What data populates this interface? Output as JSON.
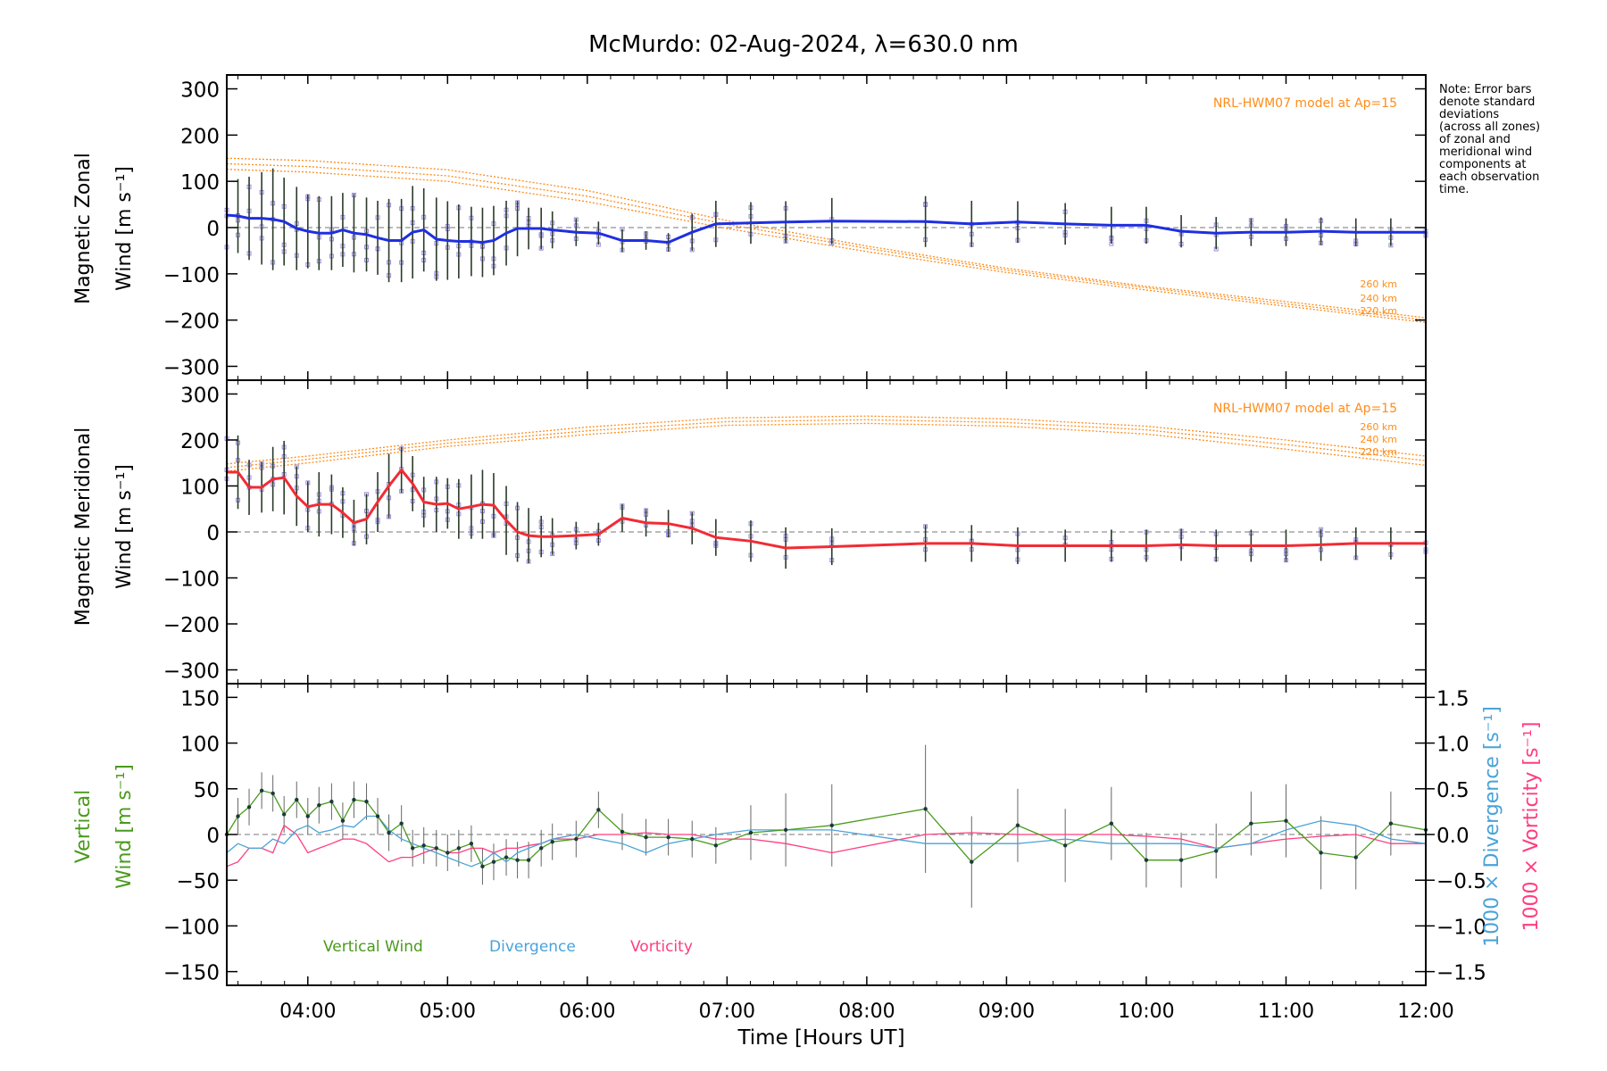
{
  "title": "McMurdo: 02-Aug-2024, λ=630.0 nm",
  "note": [
    "Note: Error bars",
    "denote standard",
    "deviations",
    "(across all zones)",
    "of zonal and",
    "meridional wind",
    "components at",
    "each observation",
    "time."
  ],
  "xlabel": "Time [Hours UT]",
  "x_ticks": [
    "04:00",
    "05:00",
    "06:00",
    "07:00",
    "08:00",
    "09:00",
    "10:00",
    "11:00",
    "12:00"
  ],
  "colors": {
    "zonal": "#1f2fe0",
    "meridional": "#f22b34",
    "model": "#ff8c1a",
    "vertical": "#4a9a1c",
    "divergence": "#4aa3d8",
    "vorticity": "#ff3d7f",
    "samples": "#9b8fe0"
  },
  "chart_data": [
    {
      "type": "line",
      "panel": "zonal",
      "ylabel_line1": "Magnetic Zonal",
      "ylabel_line2": "Wind [m s⁻¹]",
      "ylim": [
        -330,
        330
      ],
      "y_ticks": [
        "300",
        "200",
        "100",
        "0",
        "−100",
        "−200",
        "−300"
      ],
      "model_label": "NRL-HWM07 model at Ap=15",
      "altitude_labels": [
        "260 km",
        "240 km",
        "220 km"
      ],
      "grid": false,
      "x": [
        3.42,
        3.5,
        3.58,
        3.67,
        3.75,
        3.83,
        3.92,
        4.0,
        4.08,
        4.17,
        4.25,
        4.33,
        4.42,
        4.5,
        4.58,
        4.67,
        4.75,
        4.83,
        4.92,
        5.0,
        5.08,
        5.17,
        5.25,
        5.33,
        5.42,
        5.5,
        5.58,
        5.67,
        5.75,
        5.92,
        6.08,
        6.25,
        6.42,
        6.58,
        6.75,
        6.92,
        7.17,
        7.42,
        7.75,
        8.42,
        8.75,
        9.08,
        9.42,
        9.75,
        10.0,
        10.25,
        10.5,
        10.75,
        11.0,
        11.25,
        11.5,
        11.75,
        12.0
      ],
      "series": [
        {
          "values": [
            27,
            25,
            20,
            20,
            18,
            13,
            -2,
            -8,
            -12,
            -12,
            -5,
            -12,
            -15,
            -22,
            -28,
            -28,
            -10,
            -5,
            -25,
            -28,
            -30,
            -30,
            -32,
            -28,
            -12,
            -2,
            -2,
            -2,
            -5,
            -10,
            -12,
            -28,
            -28,
            -32,
            -10,
            8,
            10,
            12,
            14,
            13,
            8,
            12,
            8,
            5,
            5,
            -8,
            -12,
            -10,
            -10,
            -8,
            -10,
            -10,
            -10
          ]
        }
      ],
      "model_series": [
        {
          "name": "260 km",
          "x": [
            3.42,
            4.0,
            5.0,
            6.0,
            7.0,
            8.0,
            9.0,
            10.0,
            11.0,
            12.0
          ],
          "values": [
            150,
            145,
            125,
            80,
            15,
            -40,
            -88,
            -127,
            -160,
            -195
          ]
        },
        {
          "name": "240 km",
          "x": [
            3.42,
            4.0,
            5.0,
            6.0,
            7.0,
            8.0,
            9.0,
            10.0,
            11.0,
            12.0
          ],
          "values": [
            138,
            132,
            112,
            68,
            7,
            -45,
            -92,
            -130,
            -165,
            -200
          ]
        },
        {
          "name": "220 km",
          "x": [
            3.42,
            4.0,
            5.0,
            6.0,
            7.0,
            8.0,
            9.0,
            10.0,
            11.0,
            12.0
          ],
          "values": [
            126,
            120,
            100,
            56,
            -2,
            -52,
            -97,
            -135,
            -170,
            -205
          ]
        }
      ],
      "error_bar_halfwidth": [
        90,
        80,
        90,
        100,
        110,
        95,
        90,
        80,
        80,
        80,
        80,
        85,
        80,
        80,
        90,
        90,
        100,
        90,
        90,
        85,
        80,
        75,
        75,
        75,
        70,
        60,
        45,
        45,
        40,
        30,
        25,
        25,
        20,
        20,
        40,
        50,
        45,
        45,
        50,
        55,
        50,
        45,
        45,
        40,
        40,
        35,
        35,
        30,
        30,
        30,
        30,
        30,
        30
      ]
    },
    {
      "type": "line",
      "panel": "meridional",
      "ylabel_line1": "Magnetic Meridional",
      "ylabel_line2": "Wind [m s⁻¹]",
      "ylim": [
        -330,
        330
      ],
      "y_ticks": [
        "300",
        "200",
        "100",
        "0",
        "−100",
        "−200",
        "−300"
      ],
      "model_label": "NRL-HWM07 model at Ap=15",
      "altitude_labels": [
        "260 km",
        "240 km",
        "220 km"
      ],
      "grid": false,
      "x": [
        3.42,
        3.5,
        3.58,
        3.67,
        3.75,
        3.83,
        3.92,
        4.0,
        4.08,
        4.17,
        4.25,
        4.33,
        4.42,
        4.5,
        4.58,
        4.67,
        4.75,
        4.83,
        4.92,
        5.0,
        5.08,
        5.17,
        5.25,
        5.33,
        5.42,
        5.5,
        5.58,
        5.67,
        5.75,
        5.92,
        6.08,
        6.25,
        6.42,
        6.58,
        6.75,
        6.92,
        7.17,
        7.42,
        7.75,
        8.42,
        8.75,
        9.08,
        9.42,
        9.75,
        10.0,
        10.25,
        10.5,
        10.75,
        11.0,
        11.25,
        11.5,
        11.75,
        12.0
      ],
      "series": [
        {
          "values": [
            130,
            130,
            97,
            97,
            115,
            118,
            78,
            55,
            60,
            60,
            42,
            20,
            28,
            65,
            100,
            135,
            105,
            65,
            60,
            62,
            50,
            55,
            60,
            58,
            25,
            0,
            -8,
            -10,
            -10,
            -8,
            -5,
            30,
            20,
            18,
            8,
            -12,
            -20,
            -35,
            -32,
            -25,
            -25,
            -30,
            -30,
            -30,
            -30,
            -28,
            -30,
            -30,
            -30,
            -28,
            -25,
            -25,
            -25
          ]
        }
      ],
      "model_series": [
        {
          "name": "260 km",
          "x": [
            3.42,
            4.0,
            5.0,
            6.0,
            7.0,
            8.0,
            9.0,
            10.0,
            11.0,
            12.0
          ],
          "values": [
            148,
            165,
            200,
            228,
            248,
            252,
            246,
            230,
            200,
            165
          ]
        },
        {
          "name": "240 km",
          "x": [
            3.42,
            4.0,
            5.0,
            6.0,
            7.0,
            8.0,
            9.0,
            10.0,
            11.0,
            12.0
          ],
          "values": [
            140,
            158,
            193,
            220,
            240,
            244,
            238,
            222,
            190,
            155
          ]
        },
        {
          "name": "220 km",
          "x": [
            3.42,
            4.0,
            5.0,
            6.0,
            7.0,
            8.0,
            9.0,
            10.0,
            11.0,
            12.0
          ],
          "values": [
            132,
            150,
            186,
            212,
            232,
            236,
            230,
            213,
            180,
            145
          ]
        }
      ],
      "error_bar_halfwidth": [
        90,
        80,
        60,
        55,
        70,
        80,
        65,
        55,
        70,
        65,
        55,
        50,
        55,
        65,
        70,
        50,
        60,
        55,
        60,
        55,
        65,
        70,
        75,
        70,
        75,
        65,
        60,
        45,
        40,
        30,
        25,
        30,
        30,
        30,
        35,
        40,
        45,
        45,
        40,
        40,
        40,
        40,
        35,
        35,
        35,
        35,
        35,
        35,
        35,
        35,
        35,
        35,
        35
      ]
    },
    {
      "type": "line",
      "panel": "vertical",
      "ylabel_line1": "Vertical",
      "ylabel_line2": "Wind [m s⁻¹]",
      "ylim": [
        -165,
        165
      ],
      "y_ticks": [
        "150",
        "100",
        "50",
        "0",
        "−50",
        "−100",
        "−150"
      ],
      "right_ylabel_1": "1000 × Divergence [s⁻¹]",
      "right_ylabel_2": "1000 × Vorticity [s⁻¹]",
      "right_ylim": [
        -1.65,
        1.65
      ],
      "right_y_ticks": [
        "1.5",
        "1.0",
        "0.5",
        "0.0",
        "−0.5",
        "−1.0",
        "−1.5"
      ],
      "legend": [
        "Vertical Wind",
        "Divergence",
        "Vorticity"
      ],
      "grid": false,
      "x": [
        3.42,
        3.5,
        3.58,
        3.67,
        3.75,
        3.83,
        3.92,
        4.0,
        4.08,
        4.17,
        4.25,
        4.33,
        4.42,
        4.5,
        4.58,
        4.67,
        4.75,
        4.83,
        4.92,
        5.0,
        5.08,
        5.17,
        5.25,
        5.33,
        5.42,
        5.5,
        5.58,
        5.67,
        5.75,
        5.92,
        6.08,
        6.25,
        6.42,
        6.58,
        6.75,
        6.92,
        7.17,
        7.42,
        7.75,
        8.42,
        8.75,
        9.08,
        9.42,
        9.75,
        10.0,
        10.25,
        10.5,
        10.75,
        11.0,
        11.25,
        11.5,
        11.75,
        12.0
      ],
      "series": [
        {
          "name": "Vertical Wind",
          "axis": "left",
          "values": [
            0,
            20,
            30,
            48,
            45,
            22,
            38,
            20,
            32,
            36,
            15,
            38,
            36,
            20,
            2,
            12,
            -15,
            -12,
            -15,
            -20,
            -15,
            -10,
            -35,
            -30,
            -25,
            -28,
            -28,
            -15,
            -8,
            -5,
            27,
            3,
            -3,
            -3,
            -5,
            -12,
            2,
            5,
            10,
            28,
            -30,
            10,
            -12,
            12,
            -28,
            -28,
            -18,
            12,
            15,
            -20,
            -25,
            12,
            5
          ]
        },
        {
          "name": "Divergence",
          "axis": "right",
          "values": [
            -0.2,
            -0.1,
            -0.15,
            -0.15,
            -0.05,
            -0.1,
            0.05,
            0.1,
            0.02,
            0.05,
            0.1,
            0.08,
            0.2,
            0.2,
            0.05,
            -0.05,
            -0.1,
            -0.15,
            -0.2,
            -0.25,
            -0.3,
            -0.35,
            -0.3,
            -0.2,
            -0.3,
            -0.2,
            -0.15,
            -0.1,
            -0.05,
            0.0,
            -0.05,
            -0.1,
            -0.2,
            -0.1,
            -0.05,
            0.0,
            0.05,
            0.05,
            0.05,
            -0.1,
            -0.1,
            -0.1,
            -0.05,
            -0.1,
            -0.1,
            -0.1,
            -0.15,
            -0.1,
            0.05,
            0.15,
            0.1,
            -0.05,
            -0.1
          ]
        },
        {
          "name": "Vorticity",
          "axis": "right",
          "values": [
            -0.35,
            -0.3,
            -0.15,
            -0.15,
            -0.2,
            0.1,
            0.0,
            -0.2,
            -0.15,
            -0.1,
            -0.05,
            -0.05,
            -0.1,
            -0.2,
            -0.3,
            -0.25,
            -0.25,
            -0.2,
            -0.15,
            -0.2,
            -0.2,
            -0.15,
            -0.15,
            -0.2,
            -0.15,
            -0.15,
            -0.12,
            -0.1,
            -0.05,
            -0.05,
            0.0,
            0.0,
            0.02,
            0.0,
            0.0,
            -0.05,
            -0.05,
            -0.1,
            -0.2,
            0.0,
            0.02,
            0.0,
            0.0,
            0.0,
            -0.02,
            -0.05,
            -0.15,
            -0.1,
            -0.05,
            -0.02,
            0.0,
            -0.1,
            -0.1
          ]
        }
      ],
      "error_bar_halfwidth": [
        20,
        20,
        20,
        20,
        20,
        20,
        20,
        20,
        20,
        20,
        20,
        20,
        20,
        20,
        20,
        20,
        20,
        20,
        20,
        20,
        20,
        20,
        20,
        20,
        20,
        20,
        20,
        20,
        20,
        20,
        20,
        20,
        20,
        20,
        20,
        20,
        30,
        40,
        45,
        70,
        50,
        40,
        40,
        40,
        30,
        30,
        30,
        35,
        40,
        40,
        35,
        35,
        35
      ]
    }
  ]
}
